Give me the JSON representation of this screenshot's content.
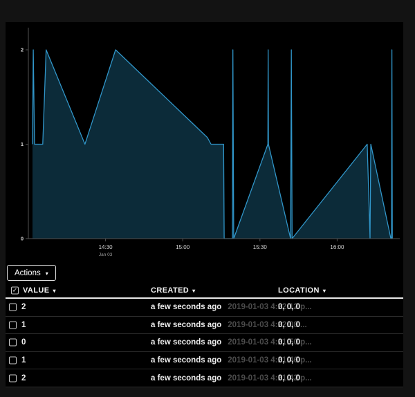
{
  "icons": {
    "caret_down": "▾",
    "check": "✓"
  },
  "toolbar": {
    "actions_label": "Actions"
  },
  "table": {
    "columns": [
      {
        "label": "VALUE"
      },
      {
        "label": "CREATED"
      },
      {
        "label": "LOCATION"
      }
    ],
    "header_checkbox_checked": true,
    "rows": [
      {
        "checked": false,
        "value": "2",
        "created_relative": "a few seconds ago",
        "created_absolute": "2019-01-03 4:22:12 p...",
        "location": "0, 0, 0"
      },
      {
        "checked": false,
        "value": "1",
        "created_relative": "a few seconds ago",
        "created_absolute": "2019-01-03 4:22:08 ...",
        "location": "0, 0, 0"
      },
      {
        "checked": false,
        "value": "0",
        "created_relative": "a few seconds ago",
        "created_absolute": "2019-01-03 4:21:50 p...",
        "location": "0, 0, 0"
      },
      {
        "checked": false,
        "value": "1",
        "created_relative": "a few seconds ago",
        "created_absolute": "2019-01-03 4:21:46 p...",
        "location": "0, 0, 0"
      },
      {
        "checked": false,
        "value": "2",
        "created_relative": "a few seconds ago",
        "created_absolute": "2019-01-03 4:21:42 p...",
        "location": "0, 0, 0"
      }
    ]
  },
  "chart_data": {
    "type": "area",
    "title": "",
    "xlabel": "",
    "ylabel": "",
    "legend": "none",
    "grid": false,
    "x_axis": {
      "unit": "minutes after 14:00, Jan 03",
      "range": [
        0,
        144
      ],
      "ticks": [
        {
          "t": 30,
          "label": "14:30",
          "sub": "Jan 03"
        },
        {
          "t": 60,
          "label": "15:00"
        },
        {
          "t": 90,
          "label": "15:30"
        },
        {
          "t": 120,
          "label": "16:00"
        }
      ]
    },
    "y_axis": {
      "range": [
        0,
        2.24
      ],
      "ticks": [
        {
          "v": 0,
          "label": "0"
        },
        {
          "v": 1,
          "label": "1"
        },
        {
          "v": 2,
          "label": "2"
        }
      ]
    },
    "series": [
      {
        "name": "value",
        "points": [
          [
            1.6,
            1
          ],
          [
            1.9,
            2
          ],
          [
            2.4,
            1
          ],
          [
            5.6,
            1
          ],
          [
            6.9,
            2
          ],
          [
            22.0,
            1
          ],
          [
            33.9,
            2
          ],
          [
            69.6,
            1.07
          ],
          [
            71.0,
            1
          ],
          [
            75.9,
            1
          ],
          [
            76.1,
            0
          ],
          [
            79.3,
            0
          ],
          [
            79.5,
            2
          ],
          [
            79.8,
            0
          ],
          [
            93.1,
            1
          ],
          [
            93.2,
            2
          ],
          [
            93.3,
            1
          ],
          [
            101.9,
            0
          ],
          [
            102.2,
            2
          ],
          [
            102.5,
            0
          ],
          [
            131.7,
            1
          ],
          [
            132.8,
            0
          ],
          [
            133.1,
            1
          ],
          [
            140.9,
            0
          ],
          [
            141.15,
            0
          ],
          [
            141.3,
            2
          ],
          [
            141.45,
            0
          ]
        ]
      }
    ],
    "colors": {
      "line": "#3095c8",
      "fill": "#0c2b39",
      "axis": "#525252",
      "tick_label": "#d6d6d6",
      "sub_label": "#9f9f9f"
    }
  }
}
